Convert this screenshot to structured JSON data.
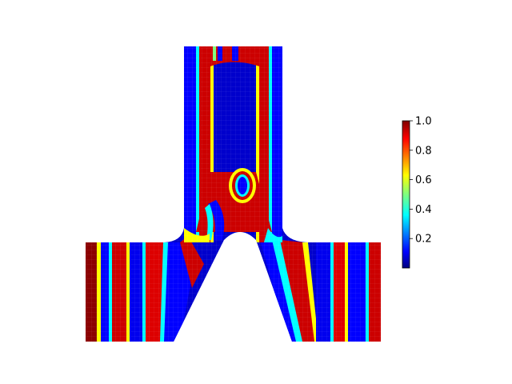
{
  "colorbar": {
    "colormap": "jet",
    "range": [
      0.0,
      1.0
    ],
    "ticks": [
      "0.2",
      "0.4",
      "0.6",
      "0.8",
      "1.0"
    ],
    "tick_values": [
      0.2,
      0.4,
      0.6,
      0.8,
      1.0
    ]
  },
  "field": {
    "description_visible": "scalar field on a Y-shaped finite-element mesh with an elongated hole in the stem and a triangular notch between the legs",
    "stripe_colors": [
      "#00007f",
      "#0000ff",
      "#00ffff",
      "#7fff7f",
      "#ffff00",
      "#ff0000",
      "#7f0000"
    ]
  }
}
